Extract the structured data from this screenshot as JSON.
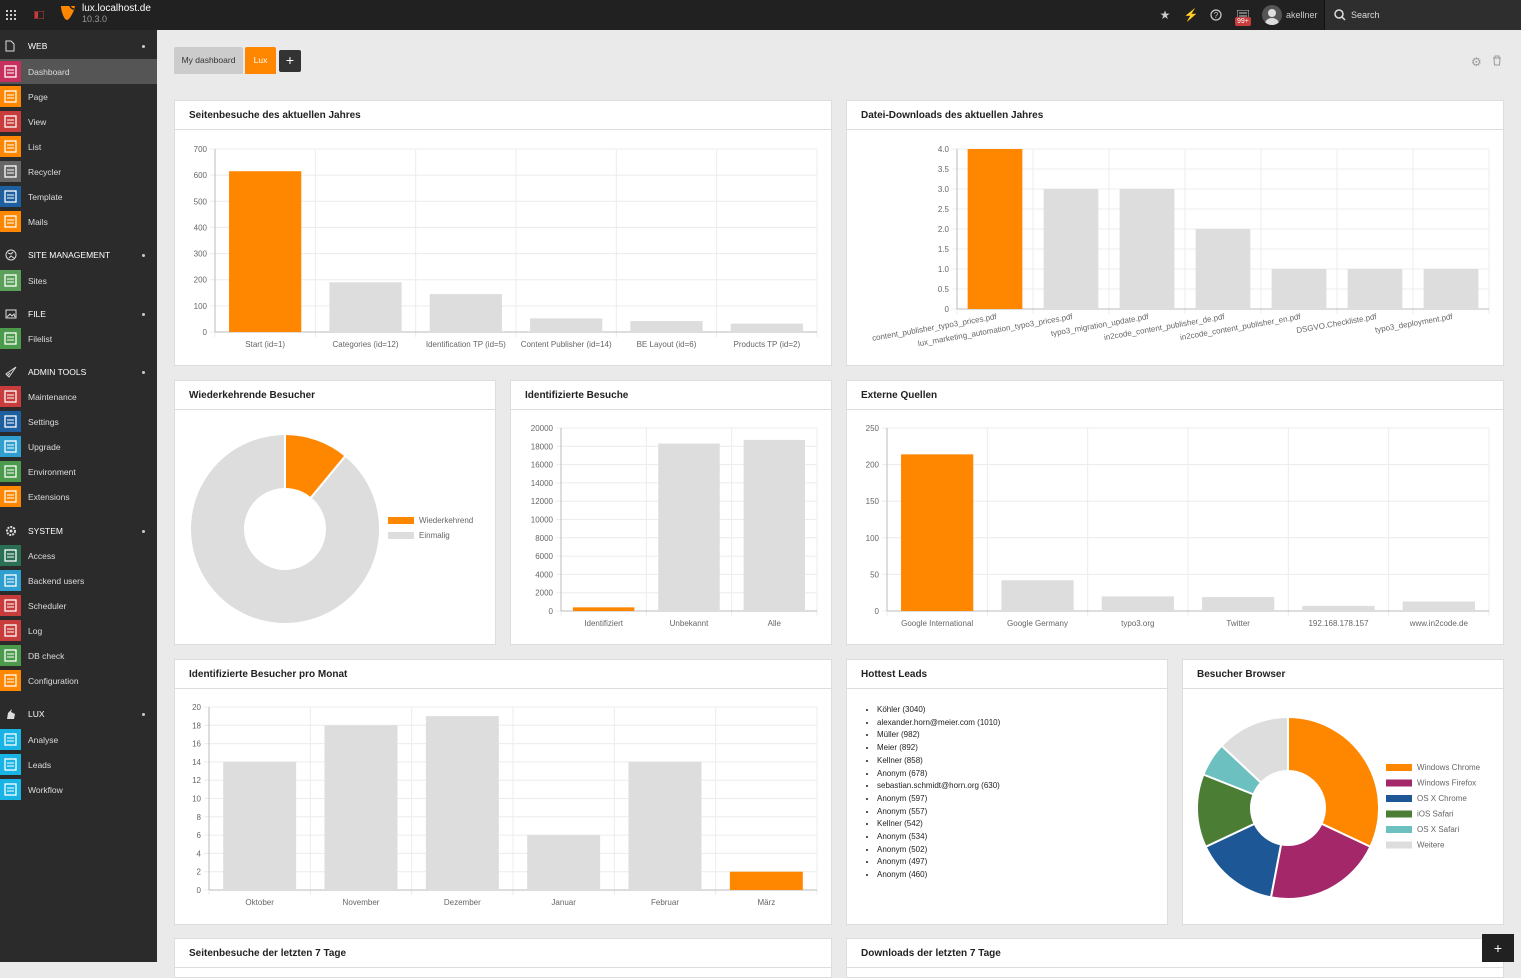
{
  "topbar": {
    "site_name": "lux.localhost.de",
    "version": "10.3.0",
    "notification_badge": "99+",
    "username": "akellner",
    "search_label": "Search"
  },
  "sidebar": {
    "sections": [
      {
        "label": "WEB",
        "items": [
          {
            "label": "Dashboard",
            "color": "#c7305e",
            "active": true
          },
          {
            "label": "Page",
            "color": "#ff8700"
          },
          {
            "label": "View",
            "color": "#c83c3c"
          },
          {
            "label": "List",
            "color": "#ff8700"
          },
          {
            "label": "Recycler",
            "color": "#666666"
          },
          {
            "label": "Template",
            "color": "#1e5fa0"
          },
          {
            "label": "Mails",
            "color": "#ff8700"
          }
        ]
      },
      {
        "label": "SITE MANAGEMENT",
        "items": [
          {
            "label": "Sites",
            "color": "#5aa05a"
          }
        ]
      },
      {
        "label": "FILE",
        "items": [
          {
            "label": "Filelist",
            "color": "#4c9a4c"
          }
        ]
      },
      {
        "label": "ADMIN TOOLS",
        "items": [
          {
            "label": "Maintenance",
            "color": "#c83c3c"
          },
          {
            "label": "Settings",
            "color": "#1e5fa0"
          },
          {
            "label": "Upgrade",
            "color": "#2f9fd0"
          },
          {
            "label": "Environment",
            "color": "#4c9a4c"
          },
          {
            "label": "Extensions",
            "color": "#ff8700"
          }
        ]
      },
      {
        "label": "SYSTEM",
        "items": [
          {
            "label": "Access",
            "color": "#2b6f55"
          },
          {
            "label": "Backend users",
            "color": "#2f9fd0"
          },
          {
            "label": "Scheduler",
            "color": "#c83c3c"
          },
          {
            "label": "Log",
            "color": "#c83c3c"
          },
          {
            "label": "DB check",
            "color": "#4c9a4c"
          },
          {
            "label": "Configuration",
            "color": "#ff8700"
          }
        ]
      },
      {
        "label": "LUX",
        "items": [
          {
            "label": "Analyse",
            "color": "#18b4e6"
          },
          {
            "label": "Leads",
            "color": "#18b4e6"
          },
          {
            "label": "Workflow",
            "color": "#18b4e6"
          }
        ]
      }
    ]
  },
  "dashboard": {
    "tabs": [
      "My dashboard",
      "Lux"
    ],
    "add_tab_label": "+",
    "add_widget_label": "+"
  },
  "widgets": {
    "page_visits": {
      "title": "Seitenbesuche des aktuellen Jahres"
    },
    "downloads": {
      "title": "Datei-Downloads des aktuellen Jahres"
    },
    "returning": {
      "title": "Wiederkehrende Besucher"
    },
    "identified": {
      "title": "Identifizierte Besuche"
    },
    "external": {
      "title": "Externe Quellen"
    },
    "monthly": {
      "title": "Identifizierte Besucher pro Monat"
    },
    "hottest": {
      "title": "Hottest Leads",
      "leads": [
        "Köhler (3040)",
        "alexander.horn@meier.com (1010)",
        "Müller (982)",
        "Meier (892)",
        "Kellner (858)",
        "Anonym (678)",
        "sebastian.schmidt@horn.org (630)",
        "Anonym (597)",
        "Anonym (557)",
        "Kellner (542)",
        "Anonym (534)",
        "Anonym (502)",
        "Anonym (497)",
        "Anonym (460)"
      ]
    },
    "browser": {
      "title": "Besucher Browser"
    },
    "visits7": {
      "title": "Seitenbesuche der letzten 7 Tage"
    },
    "downloads7": {
      "title": "Downloads der letzten 7 Tage"
    }
  },
  "chart_data": [
    {
      "id": "page_visits",
      "type": "bar",
      "categories": [
        "Start (id=1)",
        "Categories (id=12)",
        "Identification TP (id=5)",
        "Content Publisher (id=14)",
        "BE Layout (id=6)",
        "Products TP (id=2)"
      ],
      "values": [
        615,
        190,
        145,
        52,
        42,
        32
      ],
      "ylim": [
        0,
        700
      ],
      "yticks": [
        0,
        100,
        200,
        300,
        400,
        500,
        600,
        700
      ],
      "colors": [
        "#ff8700",
        "#dddddd",
        "#dddddd",
        "#dddddd",
        "#dddddd",
        "#dddddd"
      ]
    },
    {
      "id": "downloads",
      "type": "bar",
      "categories": [
        "content_publisher_typo3_prices.pdf",
        "lux_marketing_automation_typo3_prices.pdf",
        "typo3_migration_update.pdf",
        "in2code_content_publisher_de.pdf",
        "in2code_content_publisher_en.pdf",
        "DSGVO.Checkliste.pdf",
        "typo3_deployment.pdf"
      ],
      "values": [
        4,
        3,
        3,
        2,
        1,
        1,
        1
      ],
      "ylim": [
        0,
        4
      ],
      "yticks": [
        "0",
        "0.5",
        "1.0",
        "1.5",
        "2.0",
        "2.5",
        "3.0",
        "3.5",
        "4.0"
      ],
      "colors": [
        "#ff8700",
        "#dddddd",
        "#dddddd",
        "#dddddd",
        "#dddddd",
        "#dddddd",
        "#dddddd"
      ]
    },
    {
      "id": "returning",
      "type": "pie",
      "labels": [
        "Wiederkehrend",
        "Einmalig"
      ],
      "values": [
        11,
        89
      ],
      "colors": [
        "#ff8700",
        "#dddddd"
      ]
    },
    {
      "id": "identified",
      "type": "bar",
      "categories": [
        "Identifiziert",
        "Unbekannt",
        "Alle"
      ],
      "values": [
        400,
        18300,
        18700
      ],
      "ylim": [
        0,
        20000
      ],
      "yticks": [
        0,
        2000,
        4000,
        6000,
        8000,
        10000,
        12000,
        14000,
        16000,
        18000,
        20000
      ],
      "colors": [
        "#ff8700",
        "#dddddd",
        "#dddddd"
      ]
    },
    {
      "id": "external",
      "type": "bar",
      "categories": [
        "Google International",
        "Google Germany",
        "typo3.org",
        "Twitter",
        "192.168.178.157",
        "www.in2code.de"
      ],
      "values": [
        214,
        42,
        20,
        19,
        7,
        13
      ],
      "ylim": [
        0,
        250
      ],
      "yticks": [
        0,
        50,
        100,
        150,
        200,
        250
      ],
      "colors": [
        "#ff8700",
        "#dddddd",
        "#dddddd",
        "#dddddd",
        "#dddddd",
        "#dddddd"
      ]
    },
    {
      "id": "monthly",
      "type": "bar",
      "categories": [
        "Oktober",
        "November",
        "Dezember",
        "Januar",
        "Februar",
        "März"
      ],
      "values": [
        14,
        18,
        19,
        6,
        14,
        2
      ],
      "ylim": [
        0,
        20
      ],
      "yticks": [
        0,
        2,
        4,
        6,
        8,
        10,
        12,
        14,
        16,
        18,
        20
      ],
      "colors": [
        "#dddddd",
        "#dddddd",
        "#dddddd",
        "#dddddd",
        "#dddddd",
        "#ff8700"
      ]
    },
    {
      "id": "browser",
      "type": "pie",
      "labels": [
        "Windows Chrome",
        "Windows Firefox",
        "OS X Chrome",
        "iOS Safari",
        "OS X Safari",
        "Weitere"
      ],
      "values": [
        32,
        21,
        15,
        13,
        6,
        13
      ],
      "colors": [
        "#ff8700",
        "#a4276a",
        "#1e5796",
        "#4b7d34",
        "#6cc0c0",
        "#dddddd"
      ]
    }
  ]
}
